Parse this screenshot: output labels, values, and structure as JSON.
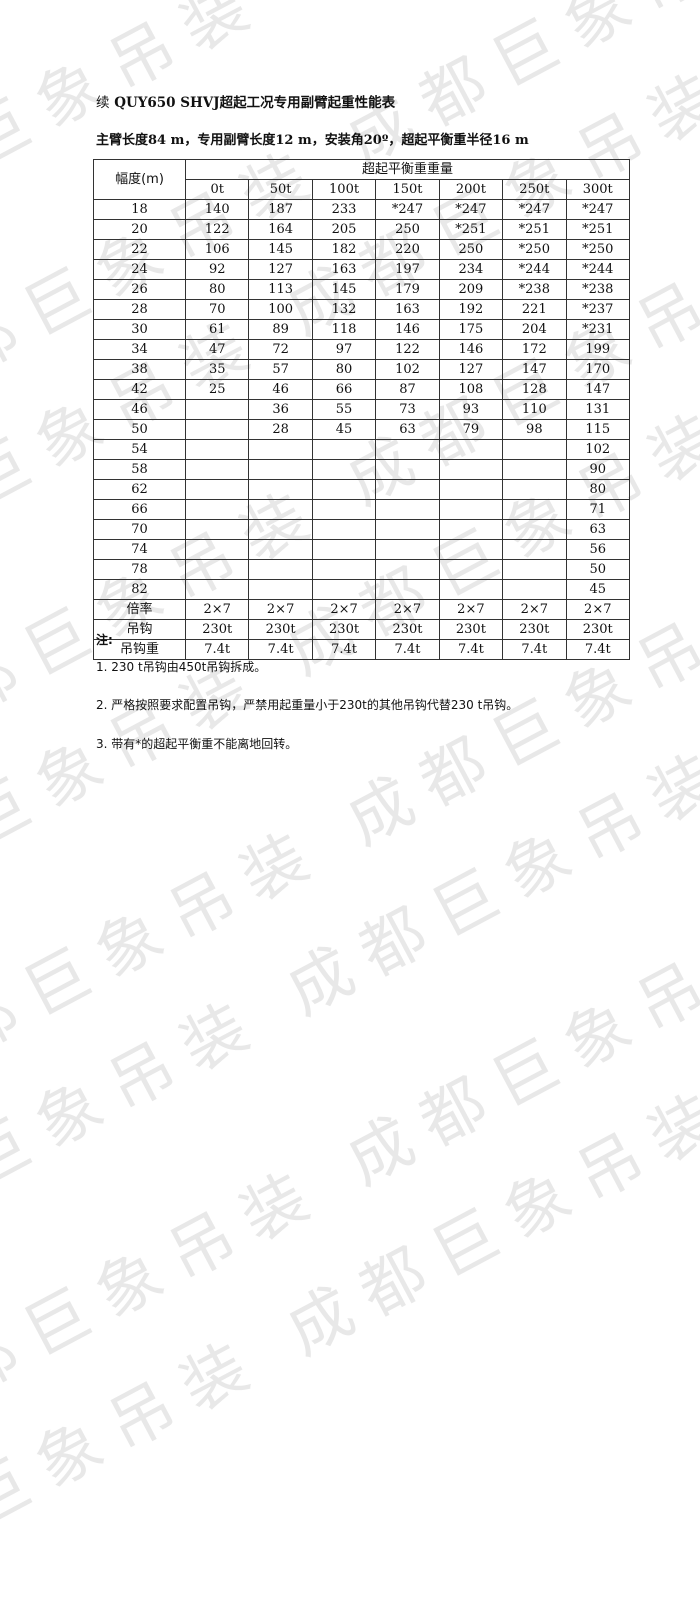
{
  "watermark": "成都巨象吊装",
  "title_prefix": "续",
  "title": "QUY650 SHVJ超起工况专用副臂起重性能表",
  "subtitle": "主臂长度84 m，专用副臂长度12 m，安装角20º，超起平衡重半径16 m",
  "table": {
    "radius_header": "幅度(m)",
    "group_header": "超起平衡重重量",
    "columns": [
      "0t",
      "50t",
      "100t",
      "150t",
      "200t",
      "250t",
      "300t"
    ],
    "rows": [
      {
        "radius": "18",
        "values": [
          "140",
          "187",
          "233",
          "*247",
          "*247",
          "*247",
          "*247"
        ]
      },
      {
        "radius": "20",
        "values": [
          "122",
          "164",
          "205",
          "250",
          "*251",
          "*251",
          "*251"
        ]
      },
      {
        "radius": "22",
        "values": [
          "106",
          "145",
          "182",
          "220",
          "250",
          "*250",
          "*250"
        ]
      },
      {
        "radius": "24",
        "values": [
          "92",
          "127",
          "163",
          "197",
          "234",
          "*244",
          "*244"
        ]
      },
      {
        "radius": "26",
        "values": [
          "80",
          "113",
          "145",
          "179",
          "209",
          "*238",
          "*238"
        ]
      },
      {
        "radius": "28",
        "values": [
          "70",
          "100",
          "132",
          "163",
          "192",
          "221",
          "*237"
        ]
      },
      {
        "radius": "30",
        "values": [
          "61",
          "89",
          "118",
          "146",
          "175",
          "204",
          "*231"
        ]
      },
      {
        "radius": "34",
        "values": [
          "47",
          "72",
          "97",
          "122",
          "146",
          "172",
          "199"
        ]
      },
      {
        "radius": "38",
        "values": [
          "35",
          "57",
          "80",
          "102",
          "127",
          "147",
          "170"
        ]
      },
      {
        "radius": "42",
        "values": [
          "25",
          "46",
          "66",
          "87",
          "108",
          "128",
          "147"
        ]
      },
      {
        "radius": "46",
        "values": [
          "",
          "36",
          "55",
          "73",
          "93",
          "110",
          "131"
        ]
      },
      {
        "radius": "50",
        "values": [
          "",
          "28",
          "45",
          "63",
          "79",
          "98",
          "115"
        ]
      },
      {
        "radius": "54",
        "values": [
          "",
          "",
          "",
          "",
          "",
          "",
          "102"
        ]
      },
      {
        "radius": "58",
        "values": [
          "",
          "",
          "",
          "",
          "",
          "",
          "90"
        ]
      },
      {
        "radius": "62",
        "values": [
          "",
          "",
          "",
          "",
          "",
          "",
          "80"
        ]
      },
      {
        "radius": "66",
        "values": [
          "",
          "",
          "",
          "",
          "",
          "",
          "71"
        ]
      },
      {
        "radius": "70",
        "values": [
          "",
          "",
          "",
          "",
          "",
          "",
          "63"
        ]
      },
      {
        "radius": "74",
        "values": [
          "",
          "",
          "",
          "",
          "",
          "",
          "56"
        ]
      },
      {
        "radius": "78",
        "values": [
          "",
          "",
          "",
          "",
          "",
          "",
          "50"
        ]
      },
      {
        "radius": "82",
        "values": [
          "",
          "",
          "",
          "",
          "",
          "",
          "45"
        ]
      }
    ],
    "footer": [
      {
        "label": "倍率",
        "values": [
          "2×7",
          "2×7",
          "2×7",
          "2×7",
          "2×7",
          "2×7",
          "2×7"
        ]
      },
      {
        "label": "吊钩",
        "values": [
          "230t",
          "230t",
          "230t",
          "230t",
          "230t",
          "230t",
          "230t"
        ]
      },
      {
        "label": "吊钩重",
        "values": [
          "7.4t",
          "7.4t",
          "7.4t",
          "7.4t",
          "7.4t",
          "7.4t",
          "7.4t"
        ]
      }
    ]
  },
  "notes": {
    "heading": "注:",
    "items": [
      "1.  230  t吊钩由450t吊钩拆成。",
      "2. 严格按照要求配置吊钩，严禁用起重量小于230t的其他吊钩代替230  t吊钩。",
      "3.  带有*的超起平衡重不能离地回转。"
    ]
  }
}
